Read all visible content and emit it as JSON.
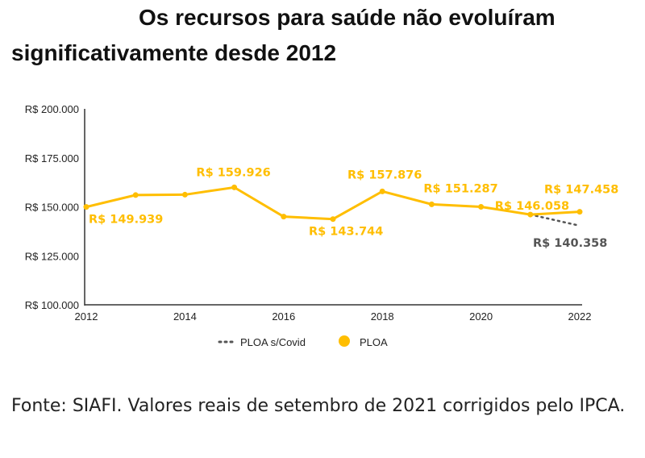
{
  "title_line1": "Os recursos para saúde não evoluíram",
  "title_line2": "significativamente desde 2012",
  "footer": "Fonte: SIAFI. Valores reais de setembro de 2021 corrigidos pelo IPCA.",
  "chart_data": {
    "type": "line",
    "x": [
      2012,
      2013,
      2014,
      2015,
      2016,
      2017,
      2018,
      2019,
      2020,
      2021,
      2022
    ],
    "xticks": [
      "2012",
      "2014",
      "2016",
      "2018",
      "2020",
      "2022"
    ],
    "yticks": [
      "R$ 100.000",
      "R$ 125.000",
      "R$ 150.000",
      "R$ 175.000",
      "R$ 200.000"
    ],
    "ylim": [
      100000,
      200000
    ],
    "series": [
      {
        "name": "PLOA",
        "color": "#FFBE00",
        "values": [
          149939,
          156000,
          156200,
          159926,
          145000,
          143744,
          157876,
          151287,
          150000,
          146058,
          147458
        ]
      },
      {
        "name": "PLOA s/Covid",
        "color": "#555555",
        "style": "dotted",
        "x": [
          2021,
          2022
        ],
        "values": [
          146058,
          140358
        ]
      }
    ],
    "annotations": [
      {
        "x": 2012,
        "text": "R$ 149.939",
        "series": "PLOA"
      },
      {
        "x": 2015,
        "text": "R$ 159.926",
        "series": "PLOA"
      },
      {
        "x": 2017,
        "text": "R$ 143.744",
        "series": "PLOA"
      },
      {
        "x": 2018,
        "text": "R$ 157.876",
        "series": "PLOA"
      },
      {
        "x": 2019,
        "text": "R$ 151.287",
        "series": "PLOA"
      },
      {
        "x": 2021,
        "text": "R$ 146.058",
        "series": "PLOA"
      },
      {
        "x": 2022,
        "text": "R$ 147.458",
        "series": "PLOA"
      },
      {
        "x": 2022,
        "text": "R$ 140.358",
        "series": "PLOA s/Covid"
      }
    ],
    "legend": [
      "PLOA s/Covid",
      "PLOA"
    ],
    "legend_position": "bottom",
    "grid": false
  }
}
